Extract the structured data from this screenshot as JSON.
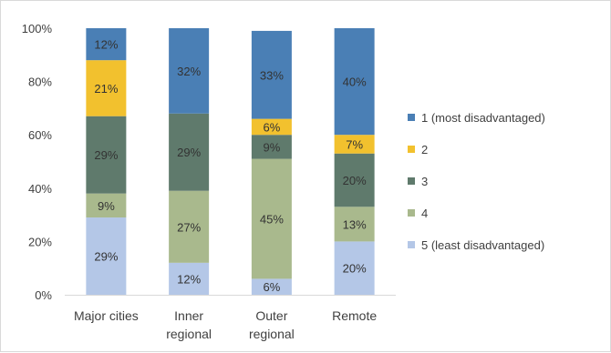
{
  "chart_data": {
    "type": "bar",
    "stacked": true,
    "percent_stacked": true,
    "categories": [
      [
        "Major cities"
      ],
      [
        "Inner",
        "regional"
      ],
      [
        "Outer",
        "regional"
      ],
      [
        "Remote"
      ]
    ],
    "series": [
      {
        "name": "5 (least disadvantaged)",
        "values": [
          29,
          12,
          6,
          20
        ],
        "labels": [
          "29%",
          "12%",
          "6%",
          "20%"
        ],
        "color": "#b4c7e7"
      },
      {
        "name": "4",
        "values": [
          9,
          27,
          45,
          13
        ],
        "labels": [
          "9%",
          "27%",
          "45%",
          "13%"
        ],
        "color": "#a9b98d"
      },
      {
        "name": "3",
        "values": [
          29,
          29,
          9,
          20
        ],
        "labels": [
          "29%",
          "29%",
          "9%",
          "20%"
        ],
        "color": "#5f7a6c"
      },
      {
        "name": "2",
        "values": [
          21,
          0,
          6,
          7
        ],
        "labels": [
          "21%",
          "",
          "6%",
          "7%"
        ],
        "color": "#f2c12e"
      },
      {
        "name": "1 (most disadvantaged)",
        "values": [
          12,
          32,
          33,
          40
        ],
        "labels": [
          "12%",
          "32%",
          "33%",
          "40%"
        ],
        "color": "#4a7fb5"
      }
    ],
    "y_ticks": [
      "0%",
      "20%",
      "40%",
      "60%",
      "80%",
      "100%"
    ],
    "ylim": [
      0,
      100
    ],
    "grid": false,
    "legend_position": "right",
    "legend_order": [
      "1 (most disadvantaged)",
      "2",
      "3",
      "4",
      "5 (least disadvantaged)"
    ],
    "title": "",
    "xlabel": "",
    "ylabel": ""
  }
}
